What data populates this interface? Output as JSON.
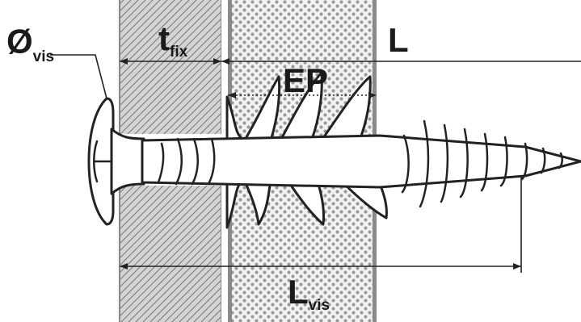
{
  "labels": {
    "screw_diameter": {
      "main": "Ø",
      "sub": "vis"
    },
    "fixture_thickness": {
      "main": "t",
      "sub": "fix"
    },
    "length": {
      "main": "L"
    },
    "panel_thickness": {
      "main": "EP"
    },
    "screw_length": {
      "main": "L",
      "sub": "vis"
    }
  },
  "colors": {
    "line": "#222222",
    "hatch_bg": "#d4d4d4",
    "dots_bg": "#f2f2f2",
    "dot": "#9a9a9a",
    "panel_edge": "#8a8a8a"
  }
}
